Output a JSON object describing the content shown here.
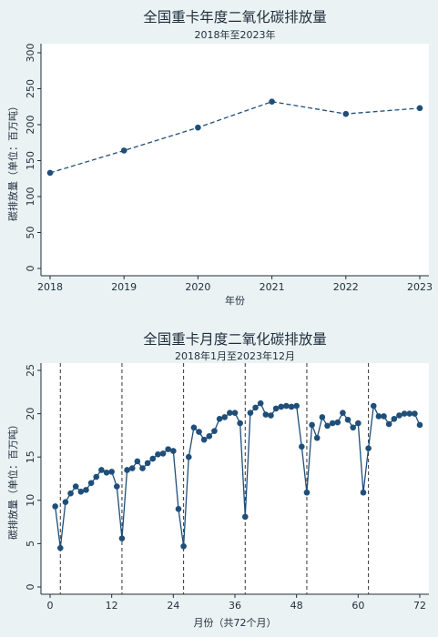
{
  "chart_data": [
    {
      "type": "line",
      "title": "全国重卡年度二氧化碳排放量",
      "subtitle": "2018年至2023年",
      "xlabel": "年份",
      "ylabel": "碳排放量（单位：百万吨）",
      "x": [
        2018,
        2019,
        2020,
        2021,
        2022,
        2023
      ],
      "values": [
        133,
        164,
        196,
        232,
        215,
        223
      ],
      "xlim": [
        2018,
        2023
      ],
      "ylim": [
        0,
        300
      ],
      "xticks": [
        "2018",
        "2019",
        "2020",
        "2021",
        "2022",
        "2023"
      ],
      "yticks": [
        "0",
        "50",
        "100",
        "150",
        "200",
        "250",
        "300"
      ],
      "line_style": "dashed",
      "grid": false,
      "color": "#1f4e79"
    },
    {
      "type": "line",
      "title": "全国重卡月度二氧化碳排放量",
      "subtitle": "2018年1月至2023年12月",
      "xlabel": "月份（共72个月）",
      "ylabel": "碳排放量（单位：百万吨）",
      "x": [
        1,
        2,
        3,
        4,
        5,
        6,
        7,
        8,
        9,
        10,
        11,
        12,
        13,
        14,
        15,
        16,
        17,
        18,
        19,
        20,
        21,
        22,
        23,
        24,
        25,
        26,
        27,
        28,
        29,
        30,
        31,
        32,
        33,
        34,
        35,
        36,
        37,
        38,
        39,
        40,
        41,
        42,
        43,
        44,
        45,
        46,
        47,
        48,
        49,
        50,
        51,
        52,
        53,
        54,
        55,
        56,
        57,
        58,
        59,
        60,
        61,
        62,
        63,
        64,
        65,
        66,
        67,
        68,
        69,
        70,
        71,
        72
      ],
      "values": [
        9.3,
        4.5,
        9.8,
        10.8,
        11.6,
        11.0,
        11.2,
        12.0,
        12.7,
        13.5,
        13.2,
        13.3,
        11.6,
        5.6,
        13.5,
        13.7,
        14.5,
        13.7,
        14.3,
        14.8,
        15.3,
        15.4,
        15.9,
        15.7,
        9.0,
        4.7,
        15.0,
        18.4,
        17.9,
        17.0,
        17.4,
        18.0,
        19.4,
        19.6,
        20.1,
        20.1,
        18.9,
        8.1,
        20.1,
        20.7,
        21.2,
        19.9,
        19.8,
        20.6,
        20.8,
        20.9,
        20.8,
        20.9,
        16.2,
        10.9,
        18.7,
        17.2,
        19.6,
        18.6,
        18.9,
        19.0,
        20.1,
        19.3,
        18.4,
        18.9,
        10.9,
        16.0,
        20.9,
        19.7,
        19.7,
        18.8,
        19.4,
        19.8,
        20.0,
        20.0,
        20.0,
        18.7
      ],
      "vlines": [
        2,
        14,
        26,
        38,
        50,
        62
      ],
      "xlim": [
        0,
        72
      ],
      "ylim": [
        0,
        25
      ],
      "xticks": [
        "0",
        "12",
        "24",
        "36",
        "48",
        "60",
        "72"
      ],
      "yticks": [
        "0",
        "5",
        "10",
        "15",
        "20",
        "25"
      ],
      "line_style": "solid",
      "grid": false,
      "color": "#1f4e79"
    }
  ]
}
